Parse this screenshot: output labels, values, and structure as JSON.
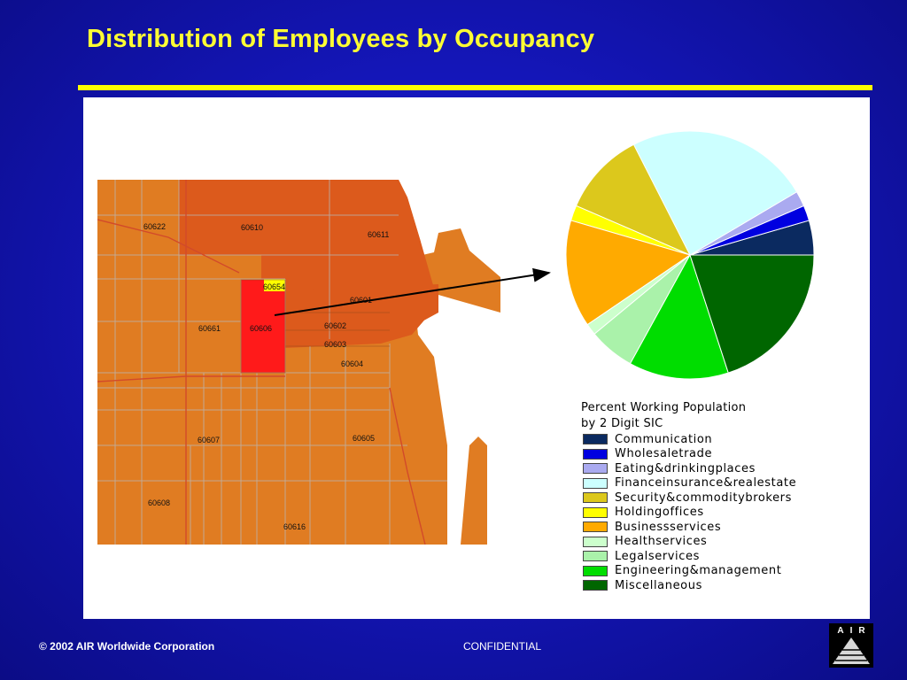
{
  "slide": {
    "title": "Distribution of Employees by Occupancy",
    "footer_copyright": "© 2002 AIR Worldwide Corporation",
    "footer_confidential": "CONFIDENTIAL",
    "logo_text": "AIR"
  },
  "colors": {
    "title": "#ffff33",
    "rule": "#ffff00",
    "map_base": "#e07c22",
    "map_north": "#dc5a1c",
    "map_highlight": "#ff1a1a",
    "map_holding": "#ffff00"
  },
  "map": {
    "zip_labels": [
      "60622",
      "60610",
      "60611",
      "60654",
      "60601",
      "60661",
      "60606",
      "60602",
      "60603",
      "60604",
      "60607",
      "60605",
      "60608",
      "60616"
    ]
  },
  "chart_data": {
    "type": "pie",
    "title": "Percent Working Population by 2 Digit SIC",
    "legend_title_line1": "Percent Working Population",
    "legend_title_line2": "by 2 Digit SIC",
    "legend_position": "bottom",
    "slices": [
      {
        "label": "Communication",
        "value": 4.5,
        "color": "#0b2a60"
      },
      {
        "label": "Wholesaletrade",
        "value": 2,
        "color": "#0000e0"
      },
      {
        "label": "Eating&drinkingplaces",
        "value": 2,
        "color": "#aaaaf0"
      },
      {
        "label": "Financeinsurance&realestate",
        "value": 24,
        "color": "#ccffff"
      },
      {
        "label": "Security&commoditybrokers",
        "value": 11,
        "color": "#dcc81c"
      },
      {
        "label": "Holdingoffices",
        "value": 2,
        "color": "#ffff00"
      },
      {
        "label": "Businessservices",
        "value": 14,
        "color": "#ffaa00"
      },
      {
        "label": "Healthservices",
        "value": 1.5,
        "color": "#ccffcc"
      },
      {
        "label": "Legalservices",
        "value": 6,
        "color": "#aaf2aa"
      },
      {
        "label": "Engineering&management",
        "value": 13,
        "color": "#00dd00"
      },
      {
        "label": "Miscellaneous",
        "value": 20,
        "color": "#006600"
      }
    ]
  }
}
